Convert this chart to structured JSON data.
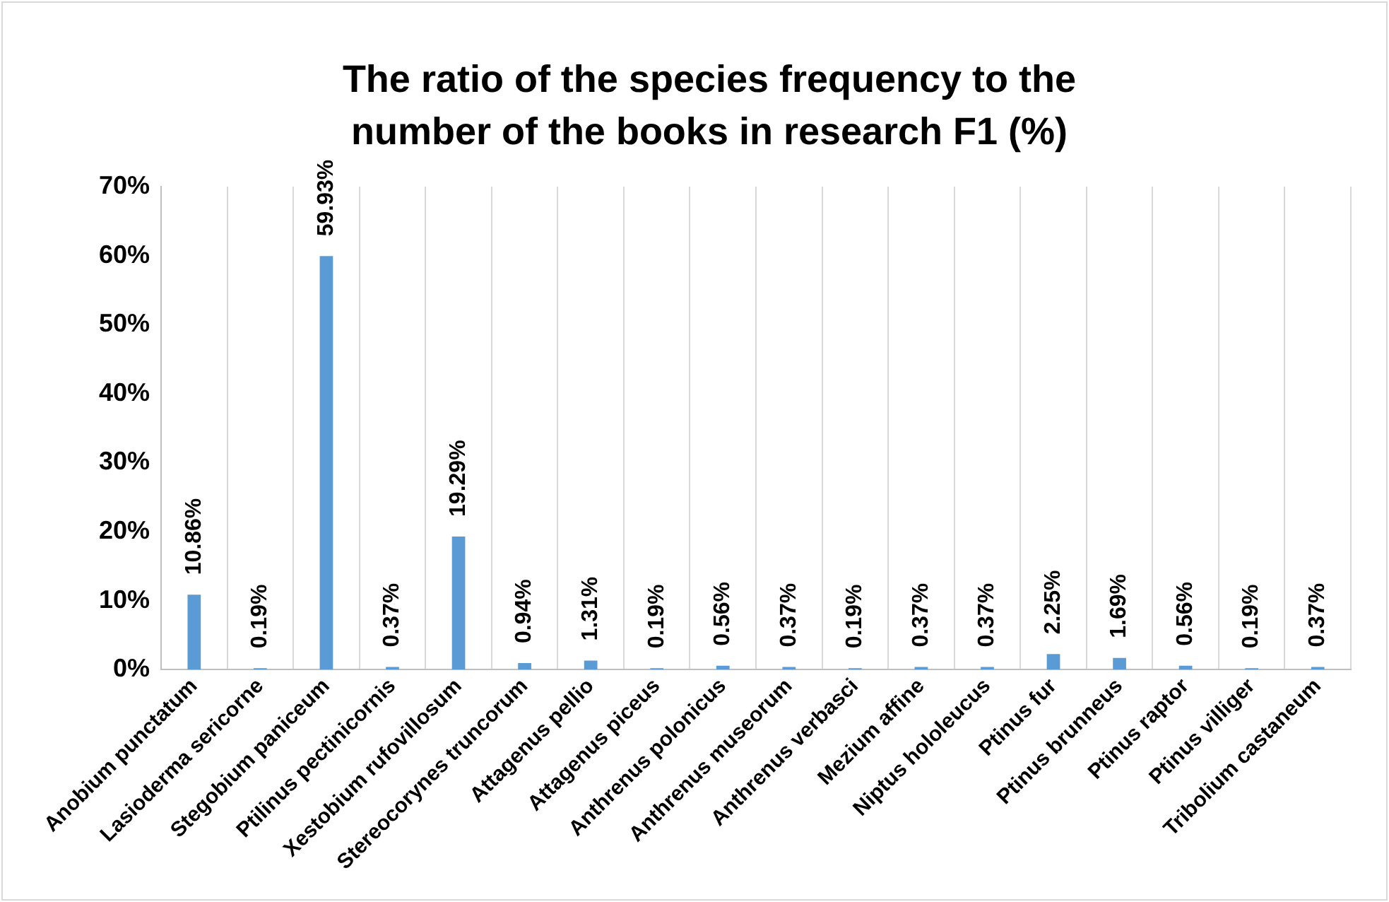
{
  "chart_data": {
    "type": "bar",
    "title": "The ratio of the species frequency to the number of the books in research F1 (%)",
    "categories": [
      "Anobium punctatum",
      "Lasioderma sericorne",
      "Stegobium paniceum",
      "Ptilinus pectinicornis",
      "Xestobium rufovillosum",
      "Stereocorynes truncorum",
      "Attagenus pellio",
      "Attagenus piceus",
      "Anthrenus polonicus",
      "Anthrenus museorum",
      "Anthrenus verbasci",
      "Mezium affine",
      "Niptus hololeucus",
      "Ptinus fur",
      "Ptinus brunneus",
      "Ptinus raptor",
      "Ptinus villiger",
      "Tribolium castaneum"
    ],
    "values": [
      10.86,
      0.19,
      59.93,
      0.37,
      19.29,
      0.94,
      1.31,
      0.19,
      0.56,
      0.37,
      0.19,
      0.37,
      0.37,
      2.25,
      1.69,
      0.56,
      0.19,
      0.37
    ],
    "value_labels": [
      "10.86%",
      "0.19%",
      "59.93%",
      "0.37%",
      "19.29%",
      "0.94%",
      "1.31%",
      "0.19%",
      "0.56%",
      "0.37%",
      "0.19%",
      "0.37%",
      "0.37%",
      "2.25%",
      "1.69%",
      "0.56%",
      "0.19%",
      "0.37%"
    ],
    "color": "#5b9bd5",
    "ylim": [
      0,
      70
    ],
    "yticks": [
      {
        "value": 0,
        "label": "0%"
      },
      {
        "value": 10,
        "label": "10%"
      },
      {
        "value": 20,
        "label": "20%"
      },
      {
        "value": 30,
        "label": "30%"
      },
      {
        "value": 40,
        "label": "40%"
      },
      {
        "value": 50,
        "label": "50%"
      },
      {
        "value": 60,
        "label": "60%"
      },
      {
        "value": 70,
        "label": "70%"
      }
    ],
    "grid": "x",
    "legend": false
  }
}
